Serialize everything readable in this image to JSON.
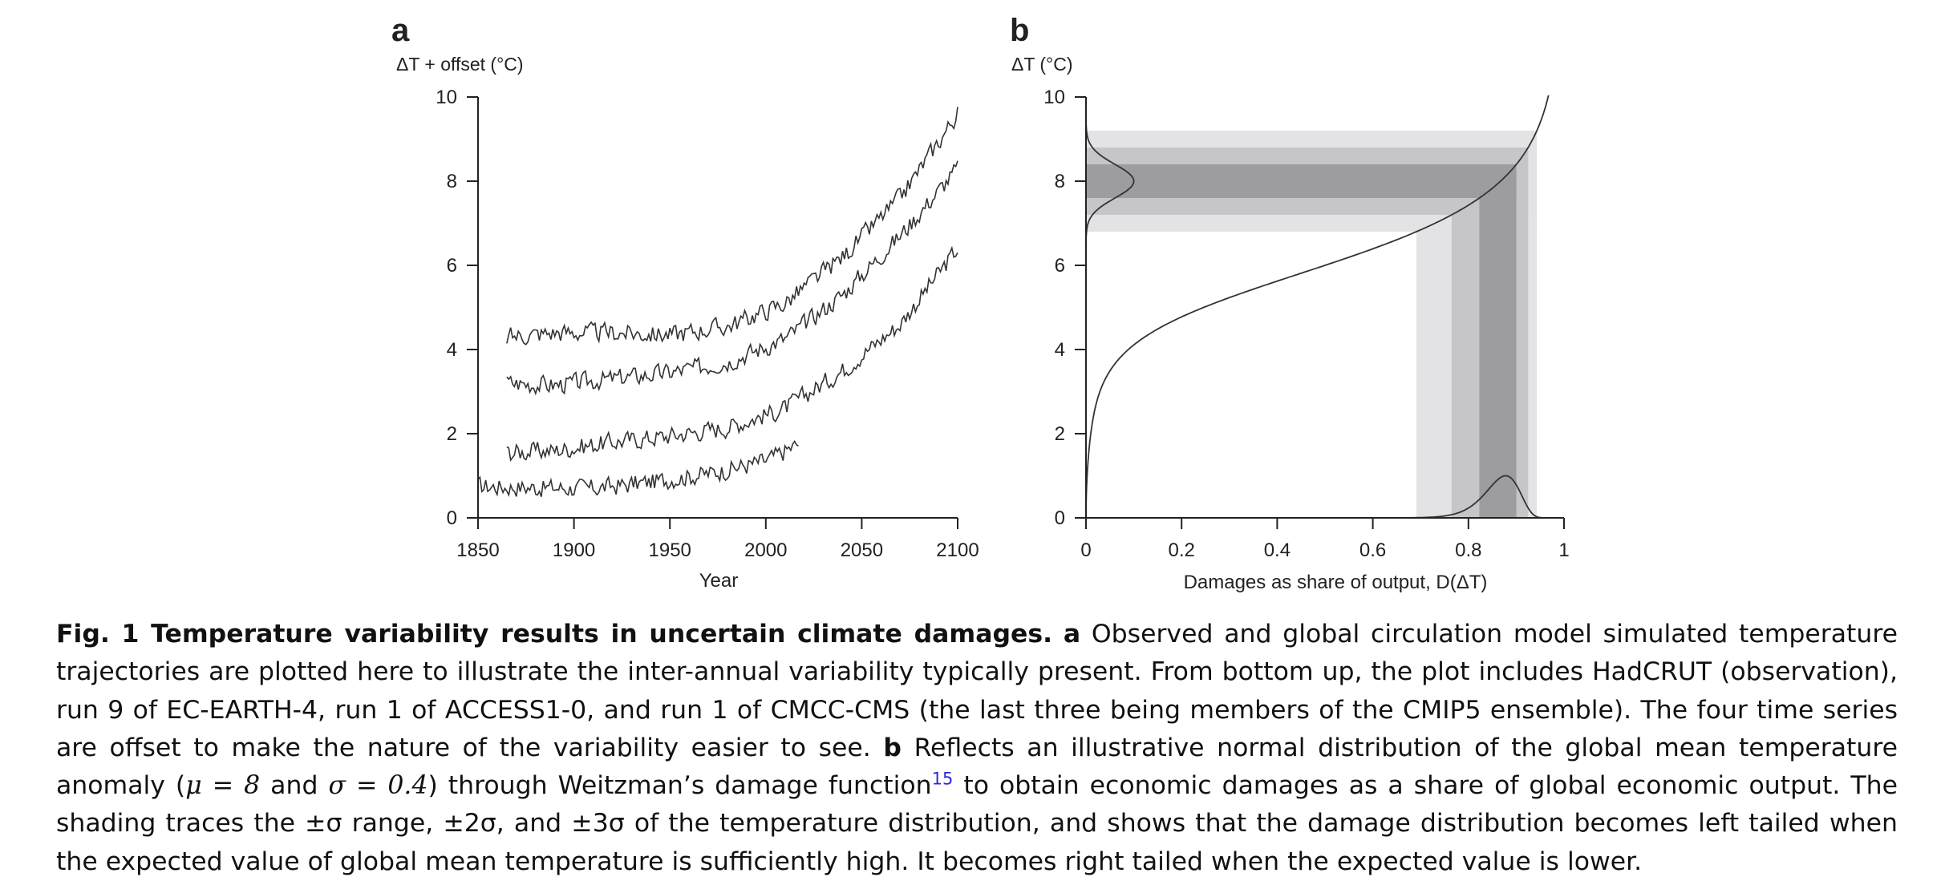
{
  "panels": {
    "a": {
      "letter": "a",
      "ylabel": "ΔT + offset (°C)",
      "xlabel": "Year",
      "xticks": [
        "1850",
        "1900",
        "1950",
        "2000",
        "2050",
        "2100"
      ],
      "yticks": [
        "0",
        "2",
        "4",
        "6",
        "8",
        "10"
      ]
    },
    "b": {
      "letter": "b",
      "ylabel": "ΔT (°C)",
      "xlabel": "Damages as share of output, D(ΔT)",
      "xticks": [
        "0",
        "0.2",
        "0.4",
        "0.6",
        "0.8",
        "1"
      ],
      "yticks": [
        "0",
        "2",
        "4",
        "6",
        "8",
        "10"
      ]
    }
  },
  "chart_data": [
    {
      "type": "line",
      "panel": "a",
      "xlim": [
        1850,
        2100
      ],
      "ylim": [
        0,
        10
      ],
      "xticks": [
        1850,
        1900,
        1950,
        2000,
        2050,
        2100
      ],
      "yticks": [
        0,
        2,
        4,
        6,
        8,
        10
      ],
      "ylabel": "ΔT + offset (°C)",
      "xlabel": "Year",
      "series": [
        {
          "years": [
            1850,
            1880,
            1910,
            1940,
            1970,
            2000,
            2017
          ],
          "values": [
            0.75,
            0.72,
            0.7,
            0.85,
            1.05,
            1.35,
            1.75
          ]
        },
        {
          "years": [
            1865,
            1890,
            1920,
            1950,
            1980,
            2010,
            2040,
            2070,
            2100
          ],
          "values": [
            1.55,
            1.6,
            1.8,
            1.95,
            2.15,
            2.6,
            3.5,
            4.6,
            6.4
          ]
        },
        {
          "years": [
            1865,
            1890,
            1920,
            1950,
            1980,
            2010,
            2040,
            2070,
            2100
          ],
          "values": [
            3.2,
            3.15,
            3.3,
            3.45,
            3.7,
            4.25,
            5.3,
            6.7,
            8.3
          ]
        },
        {
          "years": [
            1865,
            1890,
            1920,
            1950,
            1980,
            2010,
            2040,
            2070,
            2100
          ],
          "values": [
            4.3,
            4.4,
            4.4,
            4.35,
            4.55,
            5.1,
            6.2,
            7.6,
            9.6
          ]
        }
      ],
      "line_color": "#333333"
    },
    {
      "type": "line",
      "panel": "b",
      "xlim": [
        0,
        1
      ],
      "ylim": [
        0,
        10
      ],
      "xticks": [
        0,
        0.2,
        0.4,
        0.6,
        0.8,
        1
      ],
      "yticks": [
        0,
        2,
        4,
        6,
        8,
        10
      ],
      "ylabel": "ΔT (°C)",
      "xlabel": "Damages as share of output, D(ΔT)",
      "damage_function": "1 - 1/(1 + (T/20.46)^2 + (T/6.081)^6.754)",
      "temperature_distribution": {
        "mean": 8,
        "sd": 0.4
      },
      "shading_sigmas": [
        1,
        2,
        3
      ],
      "shading_colors": [
        "#9d9d9f",
        "#c6c6c8",
        "#e3e3e5"
      ]
    }
  ],
  "caption": {
    "fig_label": "Fig. 1 Temperature variability results in uncertain climate damages.",
    "a_label": "a",
    "a_text": "Observed and global circulation model simulated temperature trajectories are plotted here to illustrate the inter-annual variability typically present. From bottom up, the plot includes HadCRUT (observation), run 9 of EC-EARTH-4, run 1 of ACCESS1-0, and run 1 of CMCC-CMS (the last three being members of the CMIP5 ensemble). The four time series are offset to make the nature of the variability easier to see.",
    "b_label": "b",
    "b_text_1": "Reflects an illustrative normal distribution of the global mean temperature anomaly (",
    "mu": "μ = 8",
    "and": " and ",
    "sigma": "σ = 0.4",
    "b_text_2": ") through Weitzman’s damage function",
    "ref": "15",
    "b_text_3": " to obtain economic damages as a share of global economic output. The shading traces the ±σ range, ±2σ, and ±3σ of the temperature distribution, and shows that the damage distribution becomes left tailed when the expected value of global mean temperature is sufficiently high. It becomes right tailed when the expected value is lower."
  }
}
